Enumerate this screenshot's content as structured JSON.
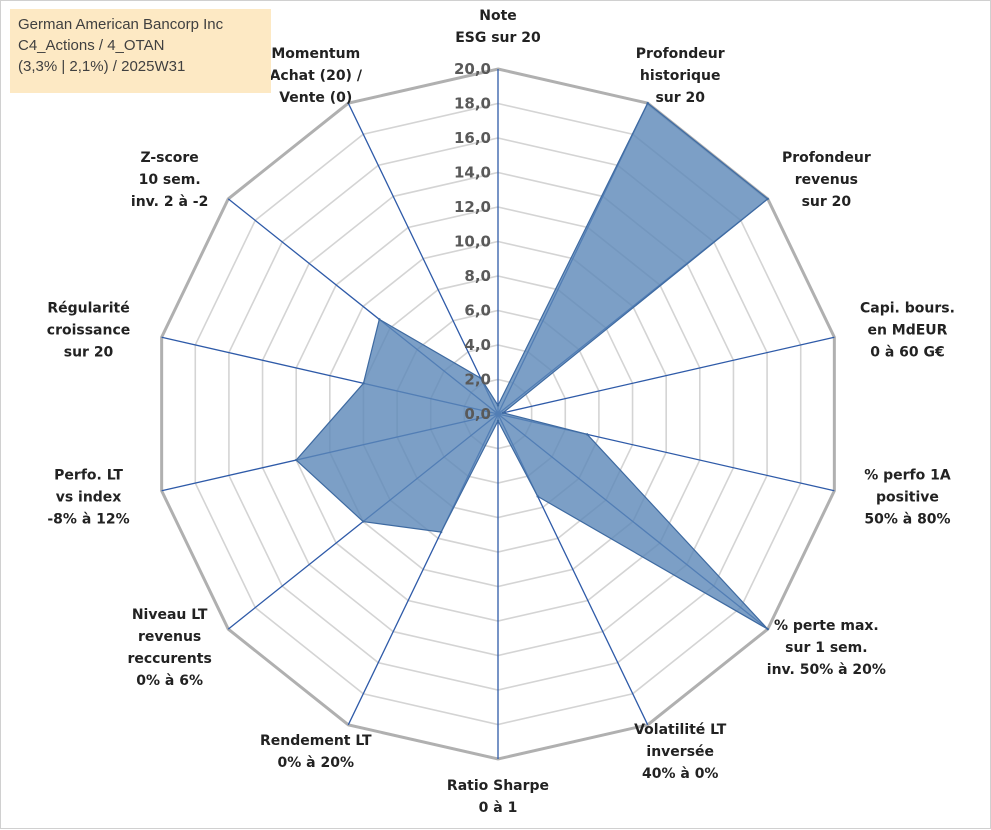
{
  "header": {
    "line1": "German American Bancorp Inc",
    "line2": "C4_Actions / 4_OTAN",
    "line3": "(3,3% | 2,1%) / 2025W31"
  },
  "chart_data": {
    "type": "radar",
    "title": "",
    "rmin": 0,
    "rmax": 20,
    "tick_step": 2,
    "tick_labels": [
      "0,0",
      "2,0",
      "4,0",
      "6,0",
      "8,0",
      "10,0",
      "12,0",
      "14,0",
      "16,0",
      "18,0",
      "20,0"
    ],
    "grid": true,
    "colors": {
      "fill": "#5b87b8",
      "fill_opacity": 0.8,
      "stroke": "#3e6aa1",
      "axis": "#2e5aa8",
      "grid": "#bfbfbf"
    },
    "axes": [
      {
        "label": [
          "Note",
          "ESG sur 20"
        ],
        "value": 0.5
      },
      {
        "label": [
          "Profondeur",
          "historique",
          "sur 20"
        ],
        "value": 20
      },
      {
        "label": [
          "Profondeur",
          "revenus",
          "sur 20"
        ],
        "value": 20
      },
      {
        "label": [
          "Capi. bours.",
          "en MdEUR",
          "0 à 60 G€"
        ],
        "value": 0.3
      },
      {
        "label": [
          "% perfo 1A",
          "positive",
          "50% à 80%"
        ],
        "value": 5.3
      },
      {
        "label": [
          "% perte max.",
          "sur 1 sem.",
          "inv. 50% à 20%"
        ],
        "value": 20
      },
      {
        "label": [
          "Volatilité LT",
          "inversée",
          "40% à 0%"
        ],
        "value": 5.3
      },
      {
        "label": [
          "Ratio Sharpe",
          "0 à 1"
        ],
        "value": 0.4
      },
      {
        "label": [
          "Rendement LT",
          "0% à 20%"
        ],
        "value": 7.6
      },
      {
        "label": [
          "Niveau LT",
          "revenus",
          "reccurents",
          "0% à 6%"
        ],
        "value": 10.0
      },
      {
        "label": [
          "Perfo. LT",
          "vs index",
          "-8% à 12%"
        ],
        "value": 12.0
      },
      {
        "label": [
          "Régularité",
          "croissance",
          "sur 20"
        ],
        "value": 8.0
      },
      {
        "label": [
          "Z-score",
          "10 sem.",
          "inv. 2 à -2"
        ],
        "value": 8.8
      },
      {
        "label": [
          "Momentum",
          "Achat (20) /",
          "Vente (0)"
        ],
        "value": 2.3
      }
    ]
  }
}
